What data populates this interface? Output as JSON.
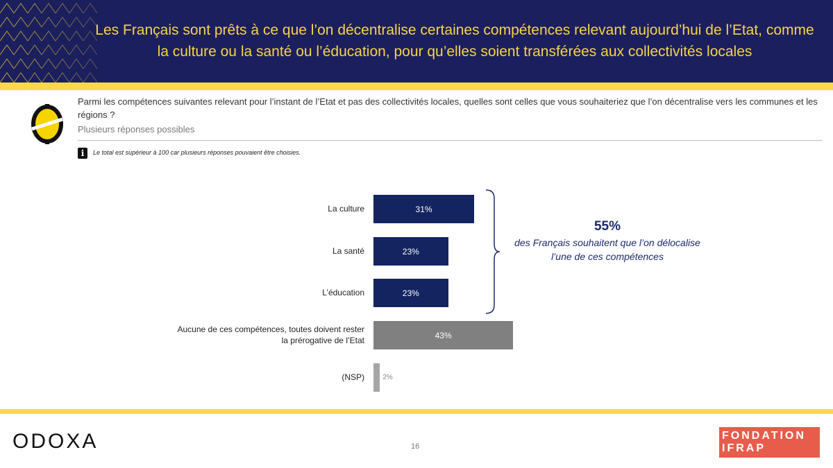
{
  "header": {
    "title": "Les Français sont prêts à ce que l’on décentralise certaines compétences relevant aujourd’hui de l’Etat, comme la culture ou la santé ou l’éducation, pour qu’elles soient transférées aux collectivités locales"
  },
  "question": {
    "text": "Parmi les compétences suivantes relevant pour l’instant de l’Etat et pas des collectivités locales, quelles sont celles que vous souhaiteriez que l’on décentralise vers les communes et les régions ?",
    "sub": "Plusieurs réponses possibles",
    "note": "Le total est supérieur à 100 car plusieurs réponses pouvaient être choisies."
  },
  "chart_data": {
    "type": "bar",
    "orientation": "horizontal",
    "unit": "%",
    "categories": [
      "La culture",
      "La santé",
      "L’éducation",
      "Aucune de ces compétences, toutes doivent rester la prérogative de l’Etat",
      "(NSP)"
    ],
    "values": [
      31,
      23,
      23,
      43,
      2
    ],
    "labels": [
      "31%",
      "23%",
      "23%",
      "43%",
      "2%"
    ],
    "colors": [
      "#132460",
      "#132460",
      "#132460",
      "#808080",
      "#a6a6a6"
    ],
    "annotation": {
      "value": "55%",
      "text": "des Français souhaitent que l’on délocalise l’une de ces compétences",
      "applies_to": [
        "La culture",
        "La santé",
        "L’éducation"
      ]
    }
  },
  "footer": {
    "brand": "ODOXA",
    "page": "16",
    "partner_line1": "FONDATION",
    "partner_line2": "IFRAP"
  }
}
